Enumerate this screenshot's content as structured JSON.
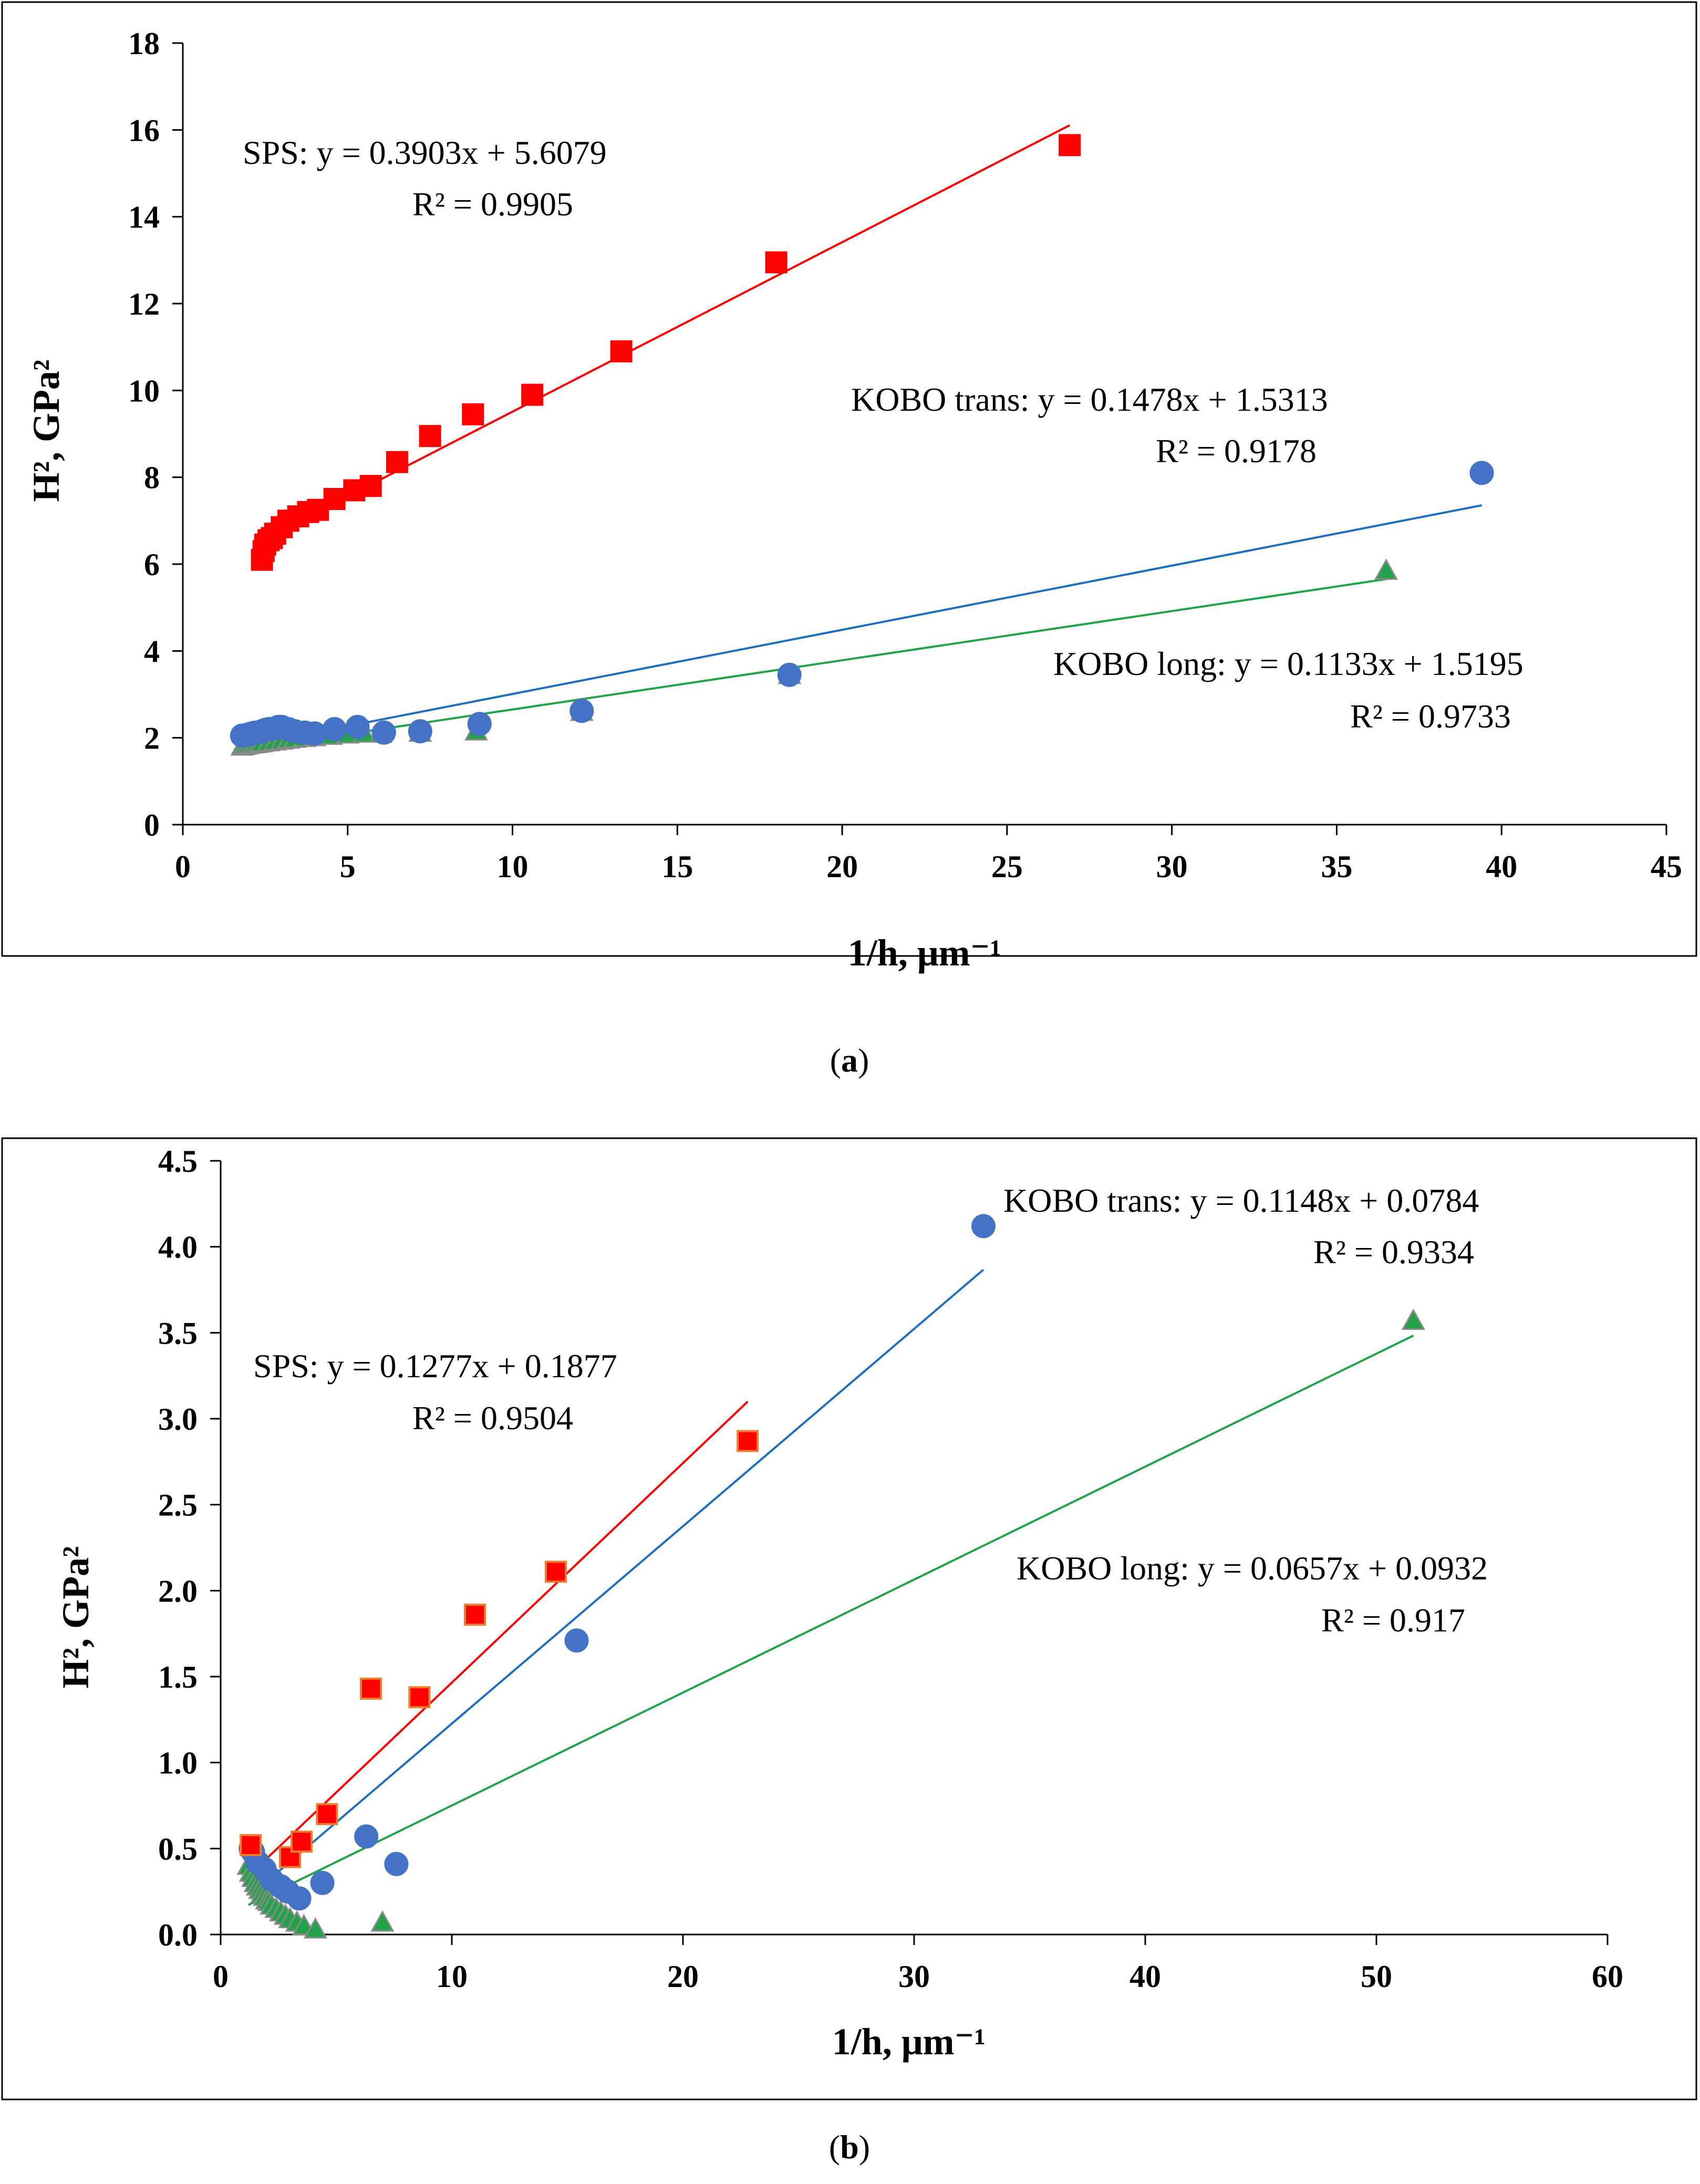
{
  "chart_data": [
    {
      "panel": "a",
      "type": "scatter",
      "caption_open": "(",
      "caption_letter": "a",
      "caption_close": ")",
      "xlabel": "1/h, μm⁻¹",
      "ylabel": "H², GPa²",
      "xlim": [
        0,
        45
      ],
      "ylim": [
        0,
        18
      ],
      "xticks": [
        0,
        5,
        10,
        15,
        20,
        25,
        30,
        35,
        40,
        45
      ],
      "yticks": [
        0,
        2,
        4,
        6,
        8,
        10,
        12,
        14,
        16,
        18
      ],
      "grid": false,
      "series": [
        {
          "name": "KOBO long",
          "marker": "triangle",
          "color": "#22a34a",
          "edge": "#8a8a8a",
          "x": [
            1.8,
            1.9,
            2.0,
            2.1,
            2.2,
            2.3,
            2.4,
            2.6,
            2.8,
            3.0,
            3.2,
            3.4,
            3.7,
            4.0,
            4.5,
            5.0,
            5.5,
            6.0,
            7.2,
            8.9,
            12.1,
            18.4,
            36.5
          ],
          "y": [
            1.8,
            1.82,
            1.84,
            1.85,
            1.86,
            1.87,
            1.88,
            1.9,
            1.92,
            1.94,
            1.96,
            1.98,
            2.0,
            2.02,
            2.05,
            2.08,
            2.1,
            2.1,
            2.12,
            2.15,
            2.6,
            3.45,
            5.85
          ],
          "fit": {
            "label": "KOBO long: y = 0.1133x + 1.5195",
            "r2": "R² = 0.9733",
            "slope": 0.1133,
            "intercept": 1.5195,
            "x_range": [
              1.8,
              36.5
            ]
          }
        },
        {
          "name": "KOBO trans",
          "marker": "circle",
          "color": "#4472c4",
          "edge": "#4472c4",
          "x": [
            1.8,
            2.0,
            2.1,
            2.2,
            2.4,
            2.5,
            2.6,
            2.8,
            2.9,
            3.0,
            3.2,
            3.4,
            3.7,
            4.0,
            4.6,
            5.3,
            6.1,
            7.2,
            9.0,
            12.1,
            18.4,
            39.4
          ],
          "y": [
            2.05,
            2.08,
            2.1,
            2.12,
            2.15,
            2.18,
            2.2,
            2.22,
            2.25,
            2.25,
            2.2,
            2.15,
            2.12,
            2.1,
            2.2,
            2.25,
            2.12,
            2.15,
            2.32,
            2.62,
            3.45,
            8.1
          ],
          "fit": {
            "label": "KOBO trans: y = 0.1478x + 1.5313",
            "r2": "R² = 0.9178",
            "slope": 0.1478,
            "intercept": 1.5313,
            "x_range": [
              1.8,
              39.4
            ]
          }
        },
        {
          "name": "SPS",
          "marker": "square",
          "color": "#ff0000",
          "edge": "#ff0000",
          "x": [
            2.4,
            2.45,
            2.5,
            2.6,
            2.7,
            2.8,
            3.0,
            3.2,
            3.5,
            3.8,
            4.1,
            4.6,
            5.2,
            5.7,
            6.5,
            7.5,
            8.8,
            10.6,
            13.3,
            18.0,
            26.9
          ],
          "y": [
            6.1,
            6.3,
            6.45,
            6.55,
            6.6,
            6.7,
            6.85,
            7.0,
            7.1,
            7.2,
            7.25,
            7.5,
            7.7,
            7.8,
            8.35,
            8.95,
            9.45,
            9.9,
            10.9,
            12.95,
            15.65
          ],
          "fit": {
            "label": "SPS: y = 0.3903x + 5.6079",
            "r2": "R² = 0.9905",
            "slope": 0.3903,
            "intercept": 5.6079,
            "x_range": [
              2.4,
              26.9
            ]
          }
        }
      ]
    },
    {
      "panel": "b",
      "type": "scatter",
      "caption_open": "(",
      "caption_letter": "b",
      "caption_close": ")",
      "xlabel": "1/h, μm⁻¹",
      "ylabel": "H², GPa²",
      "xlim": [
        0,
        60
      ],
      "ylim": [
        0,
        4.5
      ],
      "xticks": [
        0,
        10,
        20,
        30,
        40,
        50,
        60
      ],
      "yticks": [
        "0.0",
        "0.5",
        "1.0",
        "1.5",
        "2.0",
        "2.5",
        "3.0",
        "3.5",
        "4.0",
        "4.5"
      ],
      "grid": false,
      "series": [
        {
          "name": "KOBO long",
          "marker": "triangle",
          "color": "#22a34a",
          "edge": "#8a8a8a",
          "x": [
            1.2,
            1.3,
            1.4,
            1.5,
            1.6,
            1.7,
            1.8,
            1.9,
            2.0,
            2.1,
            2.2,
            2.4,
            2.6,
            2.8,
            3.0,
            3.3,
            3.6,
            4.1,
            7.0,
            51.6
          ],
          "y": [
            0.4,
            0.36,
            0.33,
            0.3,
            0.28,
            0.26,
            0.24,
            0.22,
            0.2,
            0.19,
            0.17,
            0.15,
            0.13,
            0.11,
            0.09,
            0.07,
            0.05,
            0.03,
            0.07,
            3.57
          ],
          "fit": {
            "label": "KOBO long: y = 0.0657x + 0.0932",
            "r2": "R² = 0.917",
            "slope": 0.0657,
            "intercept": 0.0932,
            "x_range": [
              1.2,
              51.6
            ]
          }
        },
        {
          "name": "KOBO trans",
          "marker": "circle",
          "color": "#4472c4",
          "edge": "#4472c4",
          "x": [
            1.3,
            1.4,
            1.6,
            1.9,
            2.2,
            2.6,
            2.9,
            3.4,
            4.4,
            6.3,
            7.6,
            15.4,
            33.0
          ],
          "y": [
            0.5,
            0.48,
            0.42,
            0.38,
            0.32,
            0.28,
            0.25,
            0.21,
            0.3,
            0.57,
            0.41,
            1.71,
            4.12
          ],
          "fit": {
            "label": "KOBO trans: y = 0.1148x + 0.0784",
            "r2": "R² = 0.9334",
            "slope": 0.1148,
            "intercept": 0.0784,
            "x_range": [
              1.3,
              33.0
            ]
          }
        },
        {
          "name": "SPS",
          "marker": "square",
          "color": "#ff0000",
          "edge": "#ed7d31",
          "x": [
            1.3,
            3.0,
            3.5,
            4.6,
            6.5,
            8.6,
            11.0,
            14.5,
            22.8
          ],
          "y": [
            0.52,
            0.45,
            0.54,
            0.7,
            1.43,
            1.38,
            1.86,
            2.11,
            2.87
          ],
          "fit": {
            "label": "SPS: y = 0.1277x + 0.1877",
            "r2": "R² = 0.9504",
            "slope": 0.1277,
            "intercept": 0.1877,
            "x_range": [
              1.3,
              22.8
            ]
          }
        }
      ]
    }
  ]
}
